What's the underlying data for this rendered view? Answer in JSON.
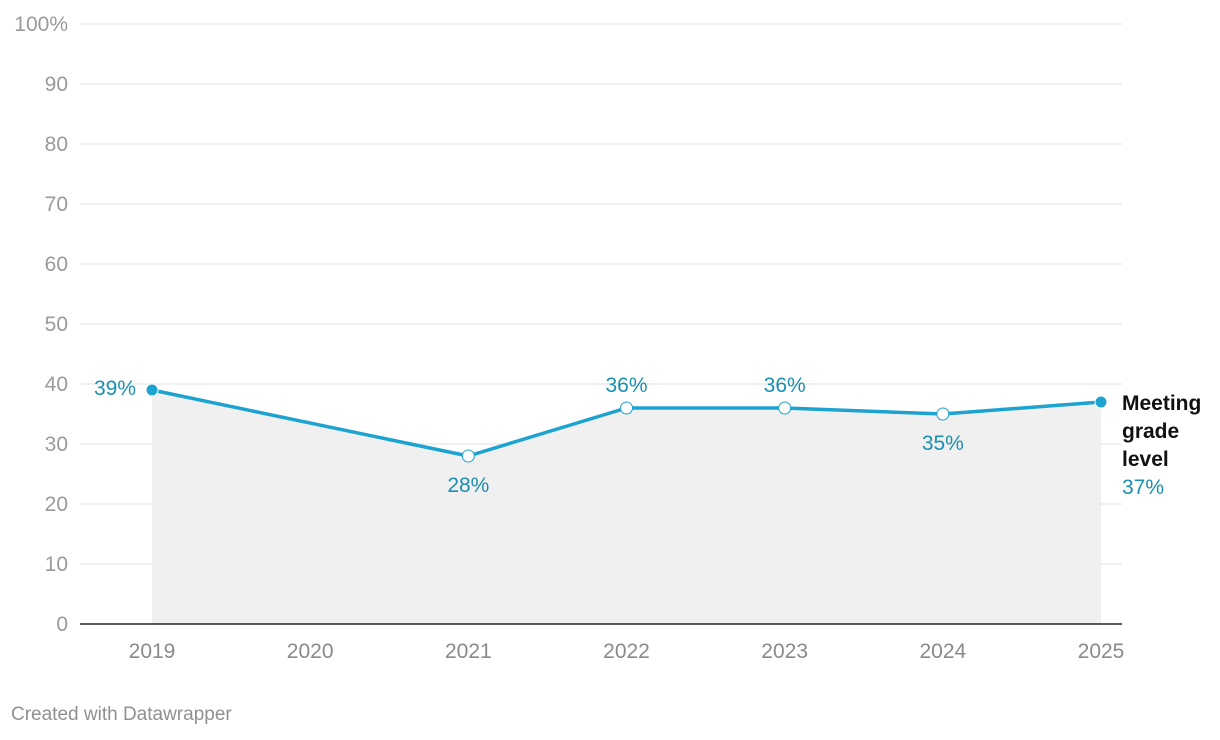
{
  "chart_data": {
    "type": "area",
    "x": [
      2019,
      2020,
      2021,
      2022,
      2023,
      2024,
      2025
    ],
    "x_tick_labels": [
      "2019",
      "2020",
      "2021",
      "2022",
      "2023",
      "2024",
      "2025"
    ],
    "series": [
      {
        "name_lines": [
          "Meeting",
          "grade",
          "level"
        ],
        "points": [
          {
            "x": 2019,
            "y": 39,
            "label": "39%",
            "marker": "filled"
          },
          {
            "x": 2021,
            "y": 28,
            "label": "28%",
            "marker": "hollow"
          },
          {
            "x": 2022,
            "y": 36,
            "label": "36%",
            "marker": "hollow"
          },
          {
            "x": 2023,
            "y": 36,
            "label": "36%",
            "marker": "hollow"
          },
          {
            "x": 2024,
            "y": 35,
            "label": "35%",
            "marker": "hollow"
          },
          {
            "x": 2025,
            "y": 37,
            "label": "37%",
            "marker": "filled"
          }
        ]
      }
    ],
    "ylim": [
      0,
      100
    ],
    "y_ticks": [
      0,
      10,
      20,
      30,
      40,
      50,
      60,
      70,
      80,
      90,
      100
    ],
    "y_tick_labels": [
      "0",
      "10",
      "20",
      "30",
      "40",
      "50",
      "60",
      "70",
      "80",
      "90",
      "100%"
    ],
    "grid": true,
    "colors": {
      "line": "#1da3cf",
      "label": "#1b8fb0",
      "area": "#f0f0f0",
      "grid": "#e2e2e2"
    }
  },
  "footer": {
    "credit": "Created with Datawrapper"
  }
}
